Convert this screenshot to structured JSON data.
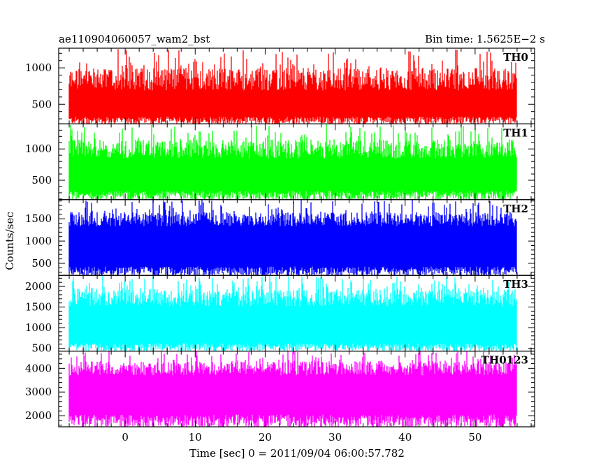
{
  "chart_data": {
    "type": "line",
    "title_left": "ae110904060057_wam2_bst",
    "title_right": "Bin time: 1.5625E−2 s",
    "xlabel": "Time [sec] 0 = 2011/09/04 06:00:57.782",
    "ylabel": "Counts/sec",
    "xlim": [
      -9.5,
      58.5
    ],
    "x_ticks": [
      0,
      10,
      20,
      30,
      40,
      50
    ],
    "x_tick_labels": [
      "0",
      "10",
      "20",
      "30",
      "40",
      "50"
    ],
    "data_range_x": [
      -8.0,
      56.0
    ],
    "grid": false,
    "panels": [
      {
        "name": "TH0",
        "color": "#ff0000",
        "ylim": [
          230,
          1270
        ],
        "y_ticks": [
          500,
          1000
        ],
        "y_tick_labels": [
          "500",
          "1000"
        ],
        "band": {
          "low_min": 230,
          "low_max": 330,
          "high_min": 690,
          "high_max": 1000,
          "spike_max": 1260,
          "spike_min": 230
        }
      },
      {
        "name": "TH1",
        "color": "#00ff00",
        "ylim": [
          190,
          1400
        ],
        "y_ticks": [
          500,
          1000
        ],
        "y_tick_labels": [
          "500",
          "1000"
        ],
        "band": {
          "low_min": 190,
          "low_max": 330,
          "high_min": 850,
          "high_max": 1150,
          "spike_max": 1400,
          "spike_min": 190
        }
      },
      {
        "name": "TH2",
        "color": "#0000ff",
        "ylim": [
          230,
          1930
        ],
        "y_ticks": [
          500,
          1000,
          1500
        ],
        "y_tick_labels": [
          "500",
          "1000",
          "1500"
        ],
        "band": {
          "low_min": 230,
          "low_max": 430,
          "high_min": 1330,
          "high_max": 1650,
          "spike_max": 1930,
          "spike_min": 230
        }
      },
      {
        "name": "TH3",
        "color": "#00ffff",
        "ylim": [
          430,
          2270
        ],
        "y_ticks": [
          500,
          1000,
          1500,
          2000
        ],
        "y_tick_labels": [
          "500",
          "1000",
          "1500",
          "2000"
        ],
        "band": {
          "low_min": 430,
          "low_max": 620,
          "high_min": 1520,
          "high_max": 1950,
          "spike_max": 2270,
          "spike_min": 430
        }
      },
      {
        "name": "TH0123",
        "color": "#ff00ff",
        "ylim": [
          1530,
          4730
        ],
        "y_ticks": [
          2000,
          3000,
          4000
        ],
        "y_tick_labels": [
          "2000",
          "3000",
          "4000"
        ],
        "band": {
          "low_min": 1530,
          "low_max": 2050,
          "high_min": 3700,
          "high_max": 4300,
          "spike_max": 4730,
          "spike_min": 1530
        }
      }
    ]
  }
}
